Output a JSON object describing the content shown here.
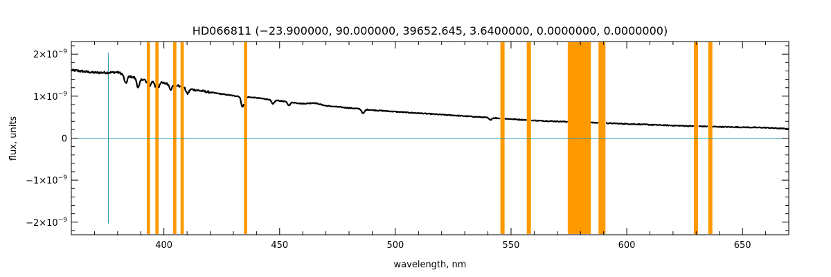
{
  "chart_data": {
    "type": "line",
    "title": "HD066811    (−23.900000, 90.000000, 39652.645, 3.6400000, 0.0000000, 0.0000000)",
    "xlabel": "wavelength, nm",
    "ylabel": "flux, units",
    "xlim": [
      360,
      670
    ],
    "ylim": [
      -2.3e-09,
      2.3e-09
    ],
    "x_ticks": [
      400,
      450,
      500,
      550,
      600,
      650
    ],
    "x_tick_labels": [
      "400",
      "450",
      "500",
      "550",
      "600",
      "650"
    ],
    "x_minor_step": 10,
    "y_ticks": [
      {
        "value": 2e-09,
        "mantissa": "2×10",
        "exponent": "−9"
      },
      {
        "value": 1e-09,
        "mantissa": "1×10",
        "exponent": "−9"
      },
      {
        "value": 0,
        "mantissa": "0",
        "exponent": ""
      },
      {
        "value": -1e-09,
        "mantissa": "−1×10",
        "exponent": "−9"
      },
      {
        "value": -2e-09,
        "mantissa": "−2×10",
        "exponent": "−9"
      }
    ],
    "y_minor_step": 2e-10,
    "grid": false,
    "colors": {
      "spectrum": "#000000",
      "mask_bands": "#ff9900",
      "reference_lines": "#2a9bb0",
      "axes": "#000000"
    },
    "reference_lines": {
      "horizontal_y": 0,
      "vertical_x": 376,
      "vertical_y_range": [
        -2.03e-09,
        2.03e-09
      ]
    },
    "masked_bands": [
      [
        392.6,
        394.0
      ],
      [
        396.3,
        397.7
      ],
      [
        404.0,
        405.4
      ],
      [
        407.2,
        408.6
      ],
      [
        434.6,
        436.0
      ],
      [
        545.4,
        547.2
      ],
      [
        556.8,
        558.6
      ],
      [
        574.5,
        584.5
      ],
      [
        587.8,
        590.8
      ],
      [
        629.0,
        630.8
      ],
      [
        635.2,
        637.0
      ]
    ],
    "series": [
      {
        "values": [
          {
            "x": 360,
            "y": 1.62e-09
          },
          {
            "x": 365,
            "y": 1.59e-09
          },
          {
            "x": 370,
            "y": 1.56e-09
          },
          {
            "x": 375,
            "y": 1.56e-09
          },
          {
            "x": 380,
            "y": 1.57e-09
          },
          {
            "x": 385,
            "y": 1.47e-09
          },
          {
            "x": 390,
            "y": 1.41e-09
          },
          {
            "x": 395,
            "y": 1.35e-09
          },
          {
            "x": 400,
            "y": 1.31e-09
          },
          {
            "x": 405,
            "y": 1.27e-09
          },
          {
            "x": 410,
            "y": 1.18e-09
          },
          {
            "x": 420,
            "y": 1.09e-09
          },
          {
            "x": 430,
            "y": 1.01e-09
          },
          {
            "x": 440,
            "y": 9.6e-10
          },
          {
            "x": 450,
            "y": 8.9e-10
          },
          {
            "x": 460,
            "y": 8.2e-10
          },
          {
            "x": 465,
            "y": 8.4e-10
          },
          {
            "x": 470,
            "y": 7.7e-10
          },
          {
            "x": 480,
            "y": 7.2e-10
          },
          {
            "x": 490,
            "y": 6.7e-10
          },
          {
            "x": 500,
            "y": 6.3e-10
          },
          {
            "x": 520,
            "y": 5.6e-10
          },
          {
            "x": 540,
            "y": 4.9e-10
          },
          {
            "x": 560,
            "y": 4.2e-10
          },
          {
            "x": 580,
            "y": 3.8e-10
          },
          {
            "x": 600,
            "y": 3.4e-10
          },
          {
            "x": 620,
            "y": 3e-10
          },
          {
            "x": 640,
            "y": 2.7e-10
          },
          {
            "x": 660,
            "y": 2.5e-10
          },
          {
            "x": 670,
            "y": 2.2e-10
          }
        ]
      }
    ],
    "absorption_lines": [
      {
        "x": 383.5,
        "depth": 2e-10
      },
      {
        "x": 388.9,
        "depth": 2.2e-10
      },
      {
        "x": 393.4,
        "depth": 2.5e-10
      },
      {
        "x": 397.0,
        "depth": 2.8e-10
      },
      {
        "x": 403.0,
        "depth": 1.2e-10
      },
      {
        "x": 410.2,
        "depth": 1.2e-10
      },
      {
        "x": 434.0,
        "depth": 2.5e-10
      },
      {
        "x": 447.1,
        "depth": 1e-10
      },
      {
        "x": 454.0,
        "depth": 8e-11
      },
      {
        "x": 486.1,
        "depth": 1e-10
      },
      {
        "x": 541.0,
        "depth": 5e-11
      }
    ]
  }
}
